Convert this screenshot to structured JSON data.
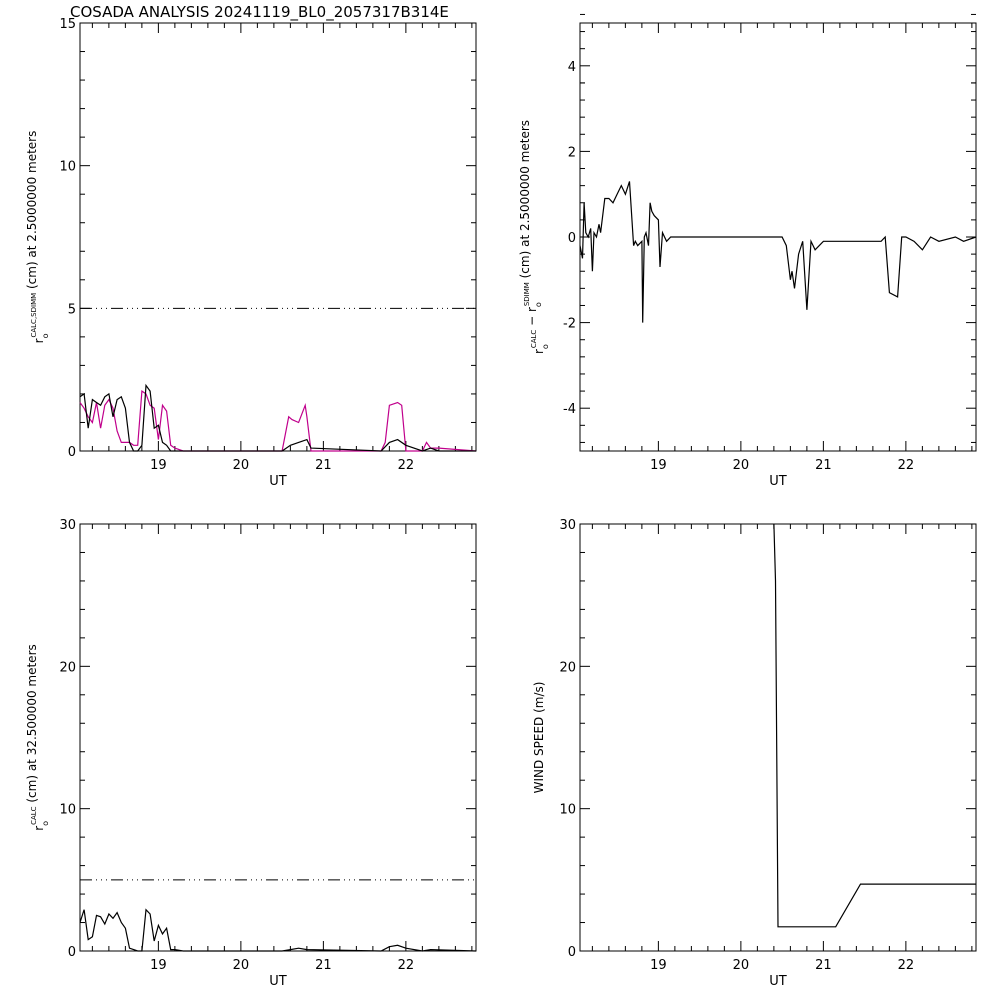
{
  "title": "COSADA ANALYSIS 20241119_BL0_2057317B314E",
  "colors": {
    "axis": "#000000",
    "black_series": "#000000",
    "magenta_series": "#c0008c"
  },
  "chart_data": [
    {
      "type": "line",
      "xlabel": "UT",
      "ylabel_parts": [
        "r",
        "o",
        "CALC,SDIMM",
        " (cm)  at  2.5000000 meters"
      ],
      "xlim": [
        18.05,
        22.85
      ],
      "ylim": [
        0,
        15
      ],
      "xticks": [
        19,
        20,
        21,
        22
      ],
      "yticks": [
        0,
        5,
        10,
        15
      ],
      "reference_line": 5,
      "series": [
        {
          "color": "magenta",
          "x": [
            18.05,
            18.1,
            18.15,
            18.2,
            18.25,
            18.3,
            18.35,
            18.4,
            18.45,
            18.5,
            18.55,
            18.6,
            18.65,
            18.7,
            18.75,
            18.8,
            18.85,
            18.9,
            18.95,
            19.0,
            19.05,
            19.1,
            19.15,
            19.2,
            19.3,
            20.5,
            20.58,
            20.62,
            20.7,
            20.78,
            20.8,
            20.85,
            21.7,
            21.75,
            21.8,
            21.9,
            21.95,
            22.0,
            22.2,
            22.25,
            22.3,
            22.4,
            22.85
          ],
          "y": [
            1.7,
            1.5,
            1.2,
            1.0,
            1.7,
            0.8,
            1.6,
            1.8,
            1.5,
            0.7,
            0.3,
            0.3,
            0.3,
            0.2,
            0.2,
            2.1,
            2.0,
            1.6,
            1.5,
            0.4,
            1.6,
            1.4,
            0.2,
            0.1,
            0.0,
            0.0,
            1.2,
            1.1,
            1.0,
            1.6,
            1.2,
            0.0,
            0.0,
            0.3,
            1.6,
            1.7,
            1.6,
            0.0,
            0.0,
            0.3,
            0.1,
            0.1,
            0.0
          ]
        },
        {
          "color": "black",
          "x": [
            18.05,
            18.1,
            18.15,
            18.2,
            18.25,
            18.3,
            18.35,
            18.4,
            18.45,
            18.5,
            18.55,
            18.6,
            18.65,
            18.7,
            18.75,
            18.8,
            18.85,
            18.9,
            18.95,
            19.0,
            19.05,
            19.1,
            19.15,
            19.2,
            19.3,
            20.5,
            20.6,
            20.7,
            20.8,
            20.85,
            21.7,
            21.8,
            21.9,
            22.0,
            22.2,
            22.3,
            22.4,
            22.85
          ],
          "y": [
            1.9,
            2.0,
            0.8,
            1.8,
            1.7,
            1.6,
            1.9,
            2.0,
            1.2,
            1.8,
            1.9,
            1.5,
            0.3,
            0.0,
            0.0,
            0.2,
            2.3,
            2.1,
            0.8,
            0.9,
            0.3,
            0.2,
            0.0,
            0.0,
            0.0,
            0.0,
            0.2,
            0.3,
            0.4,
            0.1,
            0.0,
            0.3,
            0.4,
            0.2,
            0.0,
            0.1,
            0.0,
            0.0
          ]
        }
      ]
    },
    {
      "type": "line",
      "xlabel": "UT",
      "ylabel_parts": [
        "r",
        "o",
        "CALC",
        "  −  r",
        "o",
        "SDIMM",
        " (cm)  at  2.5000000 meters"
      ],
      "xlim": [
        18.05,
        22.85
      ],
      "ylim": [
        -5,
        5
      ],
      "xticks": [
        19,
        20,
        21,
        22
      ],
      "yticks": [
        -4,
        -2,
        0,
        2,
        4
      ],
      "series": [
        {
          "color": "black",
          "x": [
            18.05,
            18.08,
            18.1,
            18.12,
            18.15,
            18.18,
            18.2,
            18.22,
            18.25,
            18.28,
            18.3,
            18.35,
            18.4,
            18.45,
            18.5,
            18.55,
            18.6,
            18.65,
            18.7,
            18.72,
            18.75,
            18.8,
            18.81,
            18.83,
            18.85,
            18.88,
            18.9,
            18.92,
            18.95,
            19.0,
            19.02,
            19.05,
            19.1,
            19.15,
            19.2,
            19.3,
            20.5,
            20.55,
            20.6,
            20.62,
            20.65,
            20.7,
            20.75,
            20.8,
            20.85,
            20.9,
            21.0,
            21.7,
            21.75,
            21.8,
            21.9,
            21.95,
            22.0,
            22.1,
            22.2,
            22.3,
            22.4,
            22.6,
            22.7,
            22.85
          ],
          "y": [
            -0.2,
            -0.5,
            0.8,
            0.1,
            0.0,
            0.2,
            -0.8,
            0.1,
            0.0,
            0.3,
            0.1,
            0.9,
            0.9,
            0.8,
            1.0,
            1.2,
            1.0,
            1.3,
            -0.2,
            -0.1,
            -0.2,
            -0.1,
            -2.0,
            0.0,
            0.1,
            -0.2,
            0.8,
            0.6,
            0.5,
            0.4,
            -0.7,
            0.1,
            -0.1,
            0.0,
            0.0,
            0.0,
            0.0,
            -0.2,
            -1.0,
            -0.8,
            -1.2,
            -0.4,
            -0.1,
            -1.7,
            -0.1,
            -0.3,
            -0.1,
            -0.1,
            0.0,
            -1.3,
            -1.4,
            0.0,
            0.0,
            -0.1,
            -0.3,
            0.0,
            -0.1,
            0.0,
            -0.1,
            0.0
          ]
        }
      ]
    },
    {
      "type": "line",
      "xlabel": "UT",
      "ylabel_parts": [
        "r",
        "o",
        "CALC",
        " (cm)  at  32.500000 meters"
      ],
      "xlim": [
        18.05,
        22.85
      ],
      "ylim": [
        0,
        30
      ],
      "xticks": [
        19,
        20,
        21,
        22
      ],
      "yticks": [
        0,
        10,
        20,
        30
      ],
      "reference_line": 5,
      "series": [
        {
          "color": "black",
          "x": [
            18.05,
            18.1,
            18.15,
            18.2,
            18.25,
            18.3,
            18.35,
            18.4,
            18.45,
            18.5,
            18.55,
            18.6,
            18.65,
            18.7,
            18.75,
            18.8,
            18.85,
            18.9,
            18.95,
            19.0,
            19.05,
            19.1,
            19.15,
            19.2,
            19.3,
            20.5,
            20.6,
            20.7,
            20.8,
            21.7,
            21.8,
            21.9,
            22.0,
            22.2,
            22.3,
            22.85
          ],
          "y": [
            2.0,
            2.9,
            0.8,
            1.0,
            2.5,
            2.4,
            1.9,
            2.6,
            2.3,
            2.7,
            2.0,
            1.6,
            0.2,
            0.1,
            0.0,
            0.0,
            2.9,
            2.6,
            0.7,
            1.8,
            1.2,
            1.6,
            0.1,
            0.1,
            0.0,
            0.0,
            0.1,
            0.2,
            0.1,
            0.0,
            0.3,
            0.4,
            0.2,
            0.0,
            0.1,
            0.0
          ]
        }
      ]
    },
    {
      "type": "line",
      "xlabel": "UT",
      "ylabel": "WIND SPEED (m/s)",
      "xlim": [
        18.05,
        22.85
      ],
      "ylim": [
        0,
        30
      ],
      "xticks": [
        19,
        20,
        21,
        22
      ],
      "yticks": [
        0,
        10,
        20,
        30
      ],
      "series": [
        {
          "color": "black",
          "x": [
            20.4,
            20.42,
            20.45,
            21.15,
            21.45,
            22.85
          ],
          "y": [
            30,
            26,
            1.7,
            1.7,
            4.7,
            4.7
          ]
        }
      ]
    }
  ]
}
